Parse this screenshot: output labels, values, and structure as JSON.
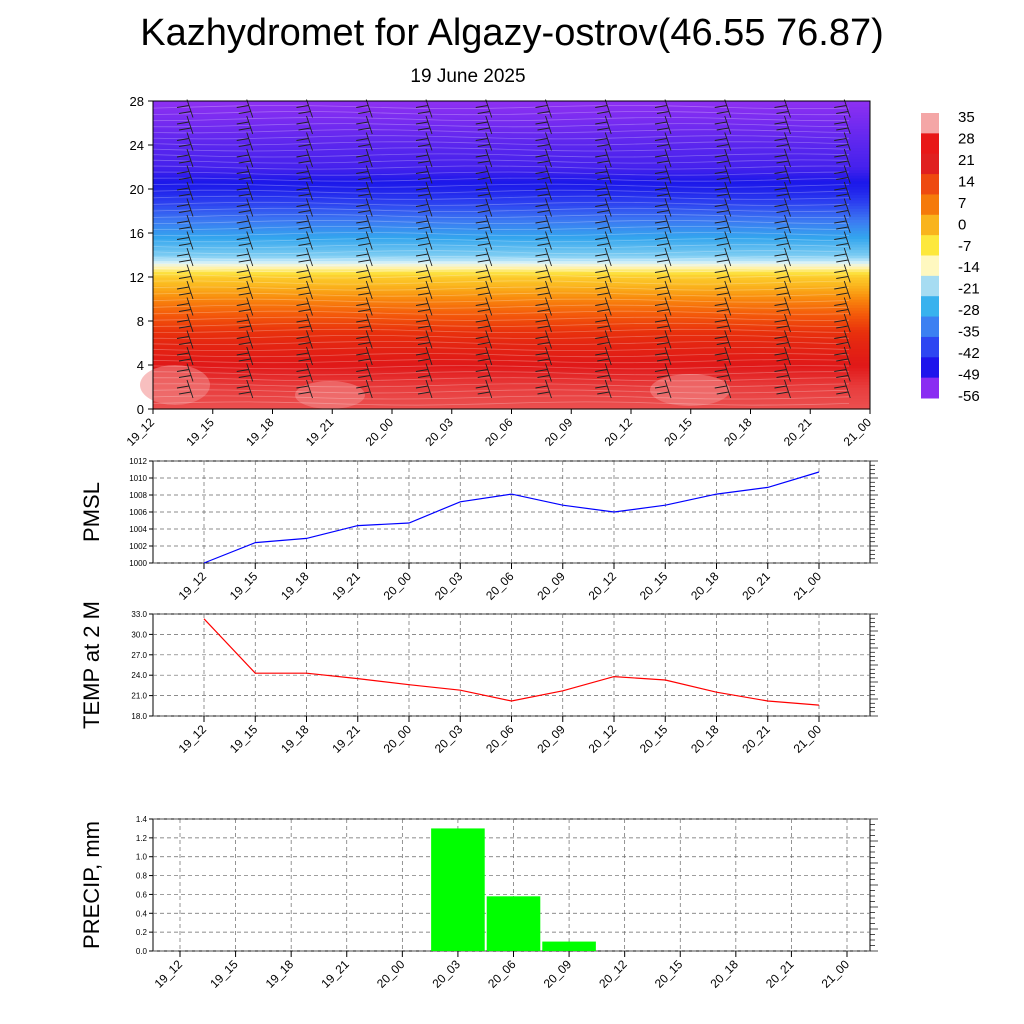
{
  "title": "Kazhydromet for Algazy-ostrov(46.55 76.87)",
  "subtitle": "19 June 2025",
  "time_labels": [
    "19_12",
    "19_15",
    "19_18",
    "19_21",
    "20_00",
    "20_03",
    "20_06",
    "20_09",
    "20_12",
    "20_15",
    "20_18",
    "20_21",
    "21_00"
  ],
  "chart_data": [
    {
      "type": "heatmap",
      "xlabel": "",
      "ylabel": "",
      "y_ticks": [
        0,
        4,
        8,
        12,
        16,
        20,
        24,
        28
      ],
      "ylim": [
        0,
        28
      ],
      "colorbar_labels": [
        "35",
        "28",
        "21",
        "14",
        "7",
        "0",
        "-7",
        "-14",
        "-21",
        "-28",
        "-35",
        "-42",
        "-49",
        "-56"
      ],
      "colorbar_colors": [
        "#f4a6a6",
        "#e81818",
        "#e02020",
        "#ee4a10",
        "#f57a0a",
        "#f9b41c",
        "#fde83c",
        "#fff8c0",
        "#a6dcf2",
        "#38b2ee",
        "#3c80f2",
        "#2e46f2",
        "#1e14ec",
        "#8a2cf2"
      ],
      "temperature_profile": {
        "heights": [
          0,
          2,
          4,
          6,
          8,
          10,
          12,
          13,
          14,
          16,
          18,
          20,
          22,
          24,
          26,
          28
        ],
        "values": [
          30,
          28,
          24,
          20,
          14,
          8,
          0,
          -10,
          -20,
          -30,
          -40,
          -50,
          -56,
          -58,
          -62,
          -66
        ]
      }
    },
    {
      "type": "line",
      "ylabel": "PMSL",
      "ylim": [
        1000,
        1012
      ],
      "y_ticks": [
        "1000",
        "1002",
        "1004",
        "1006",
        "1008",
        "1010",
        "1012"
      ],
      "color": "#0000ff",
      "values": [
        1000.0,
        1002.4,
        1002.9,
        1004.4,
        1004.7,
        1007.2,
        1008.1,
        1006.8,
        1006.0,
        1006.8,
        1008.1,
        1008.9,
        1010.7
      ]
    },
    {
      "type": "line",
      "ylabel": "TEMP at 2 M",
      "ylim": [
        18,
        33
      ],
      "y_ticks": [
        "18.0",
        "21.0",
        "24.0",
        "27.0",
        "30.0",
        "33.0"
      ],
      "color": "#ff0000",
      "values": [
        32.3,
        24.3,
        24.3,
        23.5,
        22.6,
        21.8,
        20.2,
        21.7,
        23.8,
        23.3,
        21.5,
        20.2,
        19.6
      ]
    },
    {
      "type": "bar",
      "ylabel": "PRECIP, mm",
      "ylim": [
        0,
        1.4
      ],
      "y_ticks": [
        "0.0",
        "0.2",
        "0.4",
        "0.6",
        "0.8",
        "1.0",
        "1.2",
        "1.4"
      ],
      "color": "#00ff00",
      "values": [
        0,
        0,
        0,
        0,
        0,
        1.3,
        0.58,
        0.1,
        0,
        0,
        0,
        0
      ]
    }
  ]
}
